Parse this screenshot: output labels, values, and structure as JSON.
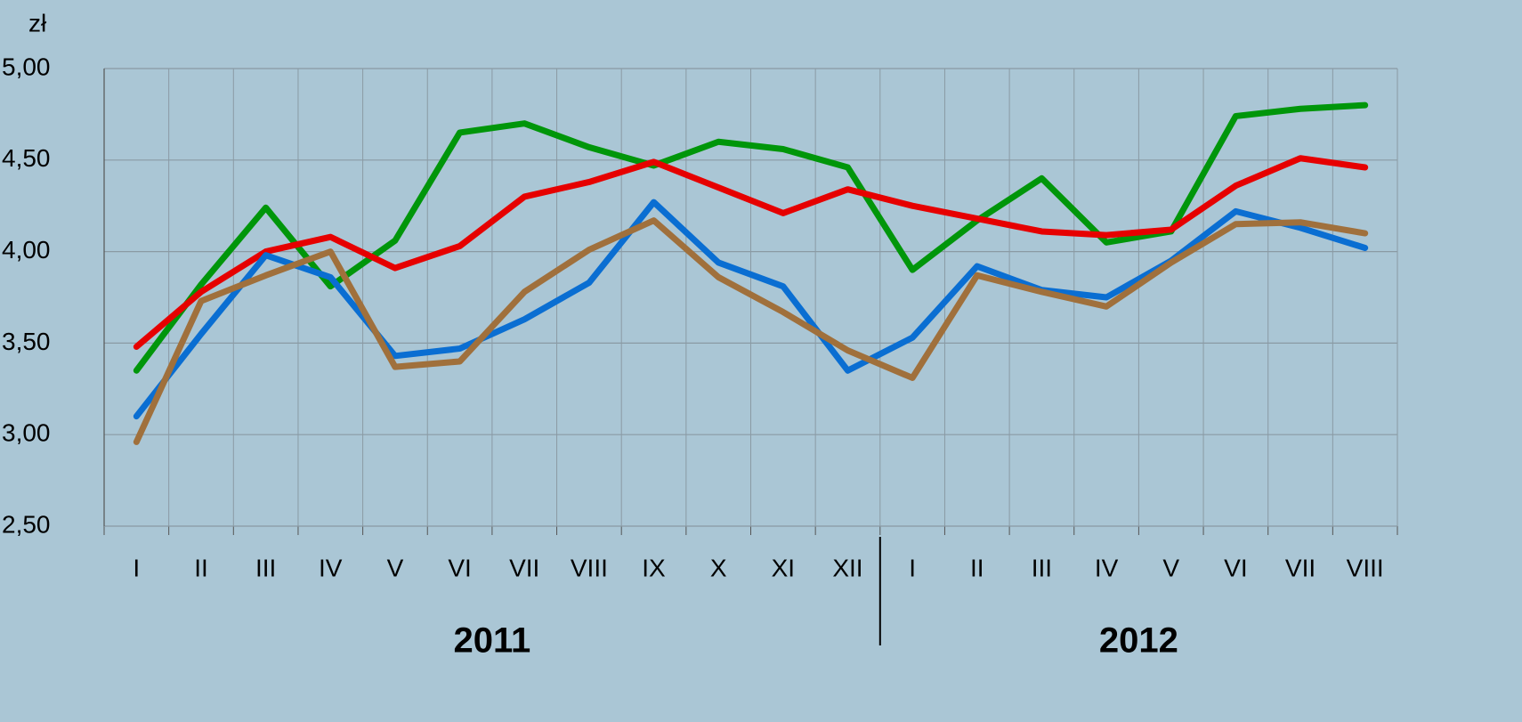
{
  "chart_data": {
    "type": "line",
    "y_label": "zł",
    "categories": [
      "I",
      "II",
      "III",
      "IV",
      "V",
      "VI",
      "VII",
      "VIII",
      "IX",
      "X",
      "XI",
      "XII",
      "I",
      "II",
      "III",
      "IV",
      "V",
      "VI",
      "VII",
      "VIII"
    ],
    "category_groups": [
      {
        "label": "2011",
        "count": 12
      },
      {
        "label": "2012",
        "count": 8
      }
    ],
    "ylim": [
      2.5,
      5.0
    ],
    "yticks": [
      {
        "value": 2.5,
        "label": "2,50"
      },
      {
        "value": 3.0,
        "label": "3,00"
      },
      {
        "value": 3.5,
        "label": "3,50"
      },
      {
        "value": 4.0,
        "label": "4,00"
      },
      {
        "value": 4.5,
        "label": "4,50"
      },
      {
        "value": 5.0,
        "label": "5,00"
      }
    ],
    "grid": true,
    "series": [
      {
        "color": "#00960a",
        "values": [
          3.35,
          3.82,
          4.24,
          3.81,
          4.06,
          4.65,
          4.7,
          4.57,
          4.47,
          4.6,
          4.56,
          4.46,
          3.9,
          4.17,
          4.4,
          4.05,
          4.11,
          4.74,
          4.78,
          4.8
        ]
      },
      {
        "color": "#e60000",
        "values": [
          3.48,
          3.78,
          4.0,
          4.08,
          3.91,
          4.03,
          4.3,
          4.38,
          4.49,
          4.35,
          4.21,
          4.34,
          4.25,
          4.18,
          4.11,
          4.09,
          4.12,
          4.36,
          4.51,
          4.46
        ]
      },
      {
        "color": "#0a6ed2",
        "values": [
          3.1,
          3.55,
          3.98,
          3.86,
          3.43,
          3.47,
          3.63,
          3.83,
          4.27,
          3.94,
          3.81,
          3.35,
          3.53,
          3.92,
          3.79,
          3.75,
          3.95,
          4.22,
          4.13,
          4.02
        ]
      },
      {
        "color": "#a0703c",
        "values": [
          2.96,
          3.73,
          3.87,
          4.0,
          3.37,
          3.4,
          3.78,
          4.01,
          4.17,
          3.86,
          3.67,
          3.46,
          3.31,
          3.87,
          3.78,
          3.7,
          3.94,
          4.15,
          4.16,
          4.1
        ]
      }
    ]
  }
}
